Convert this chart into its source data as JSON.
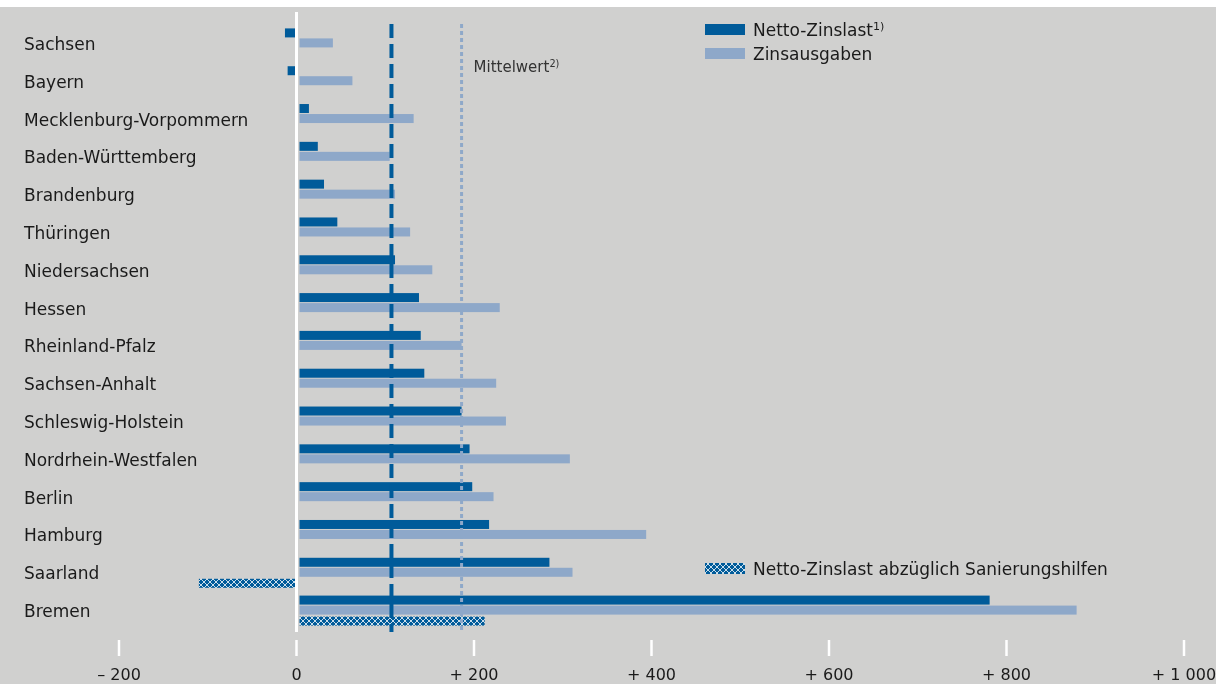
{
  "chart_data": {
    "type": "bar",
    "orientation": "horizontal",
    "categories": [
      "Sachsen",
      "Bayern",
      "Mecklenburg-Vorpommern",
      "Baden-Württemberg",
      "Brandenburg",
      "Thüringen",
      "Niedersachsen",
      "Hessen",
      "Rheinland-Pfalz",
      "Sachsen-Anhalt",
      "Schleswig-Holstein",
      "Nordrhein-Westfalen",
      "Berlin",
      "Hamburg",
      "Saarland",
      "Bremen"
    ],
    "series": [
      {
        "name": "Netto-Zinslast$^{1)}$",
        "color": "#005b9a",
        "values": [
          -13,
          -10,
          14,
          24,
          31,
          46,
          111,
          138,
          140,
          144,
          186,
          195,
          198,
          217,
          285,
          781
        ]
      },
      {
        "name": "Zinsausgaben",
        "color": "#8ea8c9",
        "values": [
          41,
          63,
          132,
          105,
          111,
          128,
          153,
          229,
          186,
          225,
          236,
          308,
          222,
          394,
          311,
          879
        ]
      },
      {
        "name": "Netto-Zinslast abzüglich Sanierungshilfen",
        "color": "#005b9a",
        "values": [
          null,
          null,
          null,
          null,
          null,
          null,
          null,
          null,
          null,
          null,
          null,
          null,
          null,
          null,
          -110,
          212
        ]
      }
    ],
    "xlim": [
      -200,
      1000
    ],
    "xticks": [
      {
        "value": -200,
        "label": "– 200"
      },
      0,
      {
        "value": 200,
        "label": "+ 200"
      },
      {
        "value": 400,
        "label": "+ 400"
      },
      {
        "value": 600,
        "label": "+ 600"
      },
      {
        "value": 800,
        "label": "+ 800"
      },
      {
        "value": 1000,
        "label": "+ 1 000"
      }
    ],
    "ref_lines": [
      {
        "axis": "x",
        "value": 107,
        "label": null,
        "color": "#005b9a",
        "line_style": "dashed"
      },
      {
        "axis": "x",
        "value": 186,
        "label": "Mittelwert$^{2)}$",
        "color": "#8ea8c9",
        "line_style": "dotted"
      }
    ],
    "legend": "top right"
  }
}
